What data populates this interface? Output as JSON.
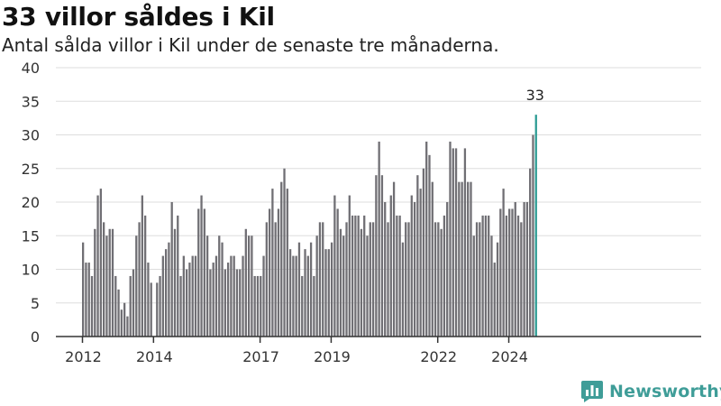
{
  "brand": {
    "name": "Newsworthy",
    "logo_icon": "newsworthy-chart-logo-icon",
    "color": "#3f9d98"
  },
  "chart_data": {
    "type": "bar",
    "title": "33 villor såldes i Kil",
    "subtitle": "Antal sålda villor i Kil under de senaste tre månaderna.",
    "xlabel": "",
    "ylabel": "",
    "ylim": [
      0,
      40
    ],
    "y_ticks": [
      0,
      5,
      10,
      15,
      20,
      25,
      30,
      35,
      40
    ],
    "x_ticks": [
      "2012",
      "2014",
      "2017",
      "2019",
      "2022",
      "2024"
    ],
    "grid": true,
    "legend": "none",
    "colors": {
      "bar": "#706f74",
      "highlight": "#2d9c94",
      "grid": "#dddddd",
      "axis": "#333333"
    },
    "highlight": {
      "label": "33",
      "value": 33
    },
    "x_start": "2012-01",
    "x_end": "2024-12",
    "values": [
      14,
      11,
      11,
      9,
      16,
      21,
      22,
      17,
      15,
      16,
      16,
      9,
      7,
      4,
      5,
      3,
      9,
      10,
      15,
      17,
      21,
      18,
      11,
      8,
      0,
      8,
      9,
      12,
      13,
      14,
      20,
      16,
      18,
      9,
      12,
      10,
      11,
      12,
      12,
      19,
      21,
      19,
      15,
      10,
      11,
      12,
      15,
      14,
      10,
      11,
      12,
      12,
      10,
      10,
      12,
      16,
      15,
      15,
      9,
      9,
      9,
      12,
      17,
      19,
      22,
      17,
      19,
      23,
      25,
      22,
      13,
      12,
      12,
      14,
      9,
      13,
      12,
      14,
      9,
      15,
      17,
      17,
      13,
      13,
      14,
      21,
      19,
      16,
      15,
      17,
      21,
      18,
      18,
      18,
      16,
      18,
      15,
      17,
      17,
      24,
      29,
      24,
      20,
      17,
      21,
      23,
      18,
      18,
      14,
      17,
      17,
      21,
      20,
      24,
      22,
      25,
      29,
      27,
      23,
      17,
      17,
      16,
      18,
      20,
      29,
      28,
      28,
      23,
      23,
      28,
      23,
      23,
      15,
      17,
      17,
      18,
      18,
      18,
      15,
      11,
      14,
      19,
      22,
      18,
      19,
      19,
      20,
      18,
      17,
      20,
      20,
      25,
      30,
      33
    ]
  }
}
